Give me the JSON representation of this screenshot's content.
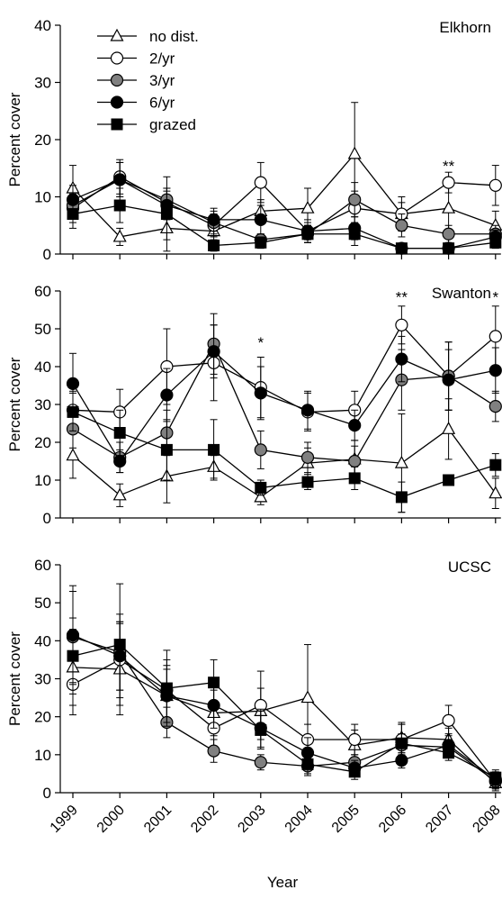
{
  "chart_data": [
    {
      "type": "line",
      "title": "Elkhorn",
      "ylabel": "Percent cover",
      "ylim": [
        0,
        40
      ],
      "yticks": [
        0,
        10,
        20,
        30,
        40
      ],
      "x": [
        "1999",
        "2000",
        "2001",
        "2002",
        "2003",
        "2004",
        "2005",
        "2006",
        "2007",
        "2008"
      ],
      "annotations": [
        {
          "x": "2007",
          "text": "**",
          "y": 14.5
        }
      ],
      "legend": {
        "placement": "top-left"
      },
      "series": [
        {
          "name": "no dist.",
          "marker": "triangle",
          "values": [
            11.5,
            3.0,
            4.5,
            4.0,
            7.5,
            8.0,
            17.5,
            7.0,
            8.0,
            5.0
          ],
          "err": [
            4,
            1.5,
            2,
            2,
            2,
            3.5,
            9,
            3,
            4,
            2.5
          ]
        },
        {
          "name": "2/yr",
          "marker": "circle-open",
          "values": [
            8.0,
            13.5,
            9.0,
            5.0,
            12.5,
            4.0,
            8.0,
            7.0,
            12.5,
            12.0
          ],
          "err": [
            2.5,
            3,
            2.5,
            2,
            3.5,
            2,
            3,
            2,
            1.8,
            3.5
          ]
        },
        {
          "name": "3/yr",
          "marker": "circle-gray",
          "values": [
            8.5,
            13.0,
            9.5,
            5.5,
            2.5,
            3.5,
            9.5,
            5.0,
            3.5,
            3.5
          ],
          "err": [
            2,
            3,
            2,
            2,
            1,
            1.5,
            3,
            2,
            1.5,
            1.5
          ]
        },
        {
          "name": "6/yr",
          "marker": "circle-black",
          "values": [
            9.5,
            13.0,
            8.5,
            6.0,
            6.0,
            4.0,
            4.5,
            1.0,
            1.0,
            3.0
          ],
          "err": [
            2.5,
            3,
            2.5,
            2,
            2.5,
            1.5,
            2,
            0.8,
            0.8,
            1.2
          ]
        },
        {
          "name": "grazed",
          "marker": "square",
          "values": [
            7.0,
            8.5,
            7.0,
            1.5,
            2.0,
            3.5,
            3.5,
            1.0,
            1.0,
            2.0
          ],
          "err": [
            2.5,
            3,
            6.5,
            1,
            1,
            1.5,
            2,
            0.8,
            0.8,
            1
          ]
        }
      ]
    },
    {
      "type": "line",
      "title": "Swanton",
      "ylabel": "Percent cover",
      "ylim": [
        0,
        60
      ],
      "yticks": [
        0,
        10,
        20,
        30,
        40,
        50,
        60
      ],
      "x": [
        "1999",
        "2000",
        "2001",
        "2002",
        "2003",
        "2004",
        "2005",
        "2006",
        "2007",
        "2008"
      ],
      "annotations": [
        {
          "x": "2003",
          "text": "*",
          "y": 45
        },
        {
          "x": "2006",
          "text": "**",
          "y": 57
        },
        {
          "x": "2008",
          "text": "*",
          "y": 57
        }
      ],
      "series": [
        {
          "name": "no dist.",
          "marker": "triangle",
          "values": [
            16.5,
            6.0,
            11.0,
            13.5,
            5.5,
            14.5,
            15.5,
            14.5,
            23.5,
            6.5
          ],
          "err": [
            6,
            3,
            7,
            3,
            2,
            4,
            5,
            13,
            8,
            4
          ]
        },
        {
          "name": "2/yr",
          "marker": "circle-open",
          "values": [
            28.5,
            28.0,
            40.0,
            41.0,
            34.5,
            28.0,
            28.5,
            51.0,
            37.5,
            48.0
          ],
          "err": [
            5,
            6,
            10,
            10,
            8,
            5,
            5,
            5,
            9,
            8
          ]
        },
        {
          "name": "3/yr",
          "marker": "circle-gray",
          "values": [
            23.5,
            16.0,
            22.5,
            46.0,
            18.0,
            16.0,
            15.0,
            36.5,
            37.5,
            29.5
          ],
          "err": [
            5,
            4,
            6,
            8,
            5,
            4,
            4,
            8,
            9,
            4
          ]
        },
        {
          "name": "6/yr",
          "marker": "circle-black",
          "values": [
            35.5,
            15.0,
            32.5,
            44.0,
            33.0,
            28.5,
            24.5,
            42.0,
            36.5,
            39.0
          ],
          "err": [
            8,
            3,
            7,
            7,
            7,
            5,
            4,
            6,
            8,
            6
          ]
        },
        {
          "name": "grazed",
          "marker": "square",
          "values": [
            28.0,
            22.5,
            18.0,
            18.0,
            8.0,
            9.5,
            10.5,
            5.5,
            10.0,
            14.0
          ],
          "err": [
            5,
            6,
            8,
            8,
            2,
            2,
            3,
            4,
            1,
            3
          ]
        }
      ]
    },
    {
      "type": "line",
      "title": "UCSC",
      "ylabel": "Percent cover",
      "xlabel": "Year",
      "ylim": [
        0,
        60
      ],
      "yticks": [
        0,
        10,
        20,
        30,
        40,
        50,
        60
      ],
      "x": [
        "1999",
        "2000",
        "2001",
        "2002",
        "2003",
        "2004",
        "2005",
        "2006",
        "2007",
        "2008"
      ],
      "series": [
        {
          "name": "no dist.",
          "marker": "triangle",
          "values": [
            33.0,
            32.5,
            25.5,
            21.0,
            21.5,
            25.0,
            12.5,
            14.5,
            14.0,
            2.5
          ],
          "err": [
            10,
            12,
            8,
            6,
            6,
            14,
            4,
            4,
            3,
            2
          ]
        },
        {
          "name": "2/yr",
          "marker": "circle-open",
          "values": [
            28.5,
            35.0,
            27.0,
            17.0,
            23.0,
            14.0,
            14.0,
            14.0,
            19.0,
            3.0
          ],
          "err": [
            8,
            10,
            8,
            5,
            9,
            4,
            4,
            4,
            4,
            2
          ]
        },
        {
          "name": "3/yr",
          "marker": "circle-gray",
          "values": [
            41.0,
            37.0,
            18.5,
            11.0,
            8.0,
            7.0,
            8.0,
            12.5,
            12.0,
            3.0
          ],
          "err": [
            12,
            10,
            4,
            3,
            2,
            2,
            2,
            3,
            2,
            2
          ]
        },
        {
          "name": "6/yr",
          "marker": "circle-black",
          "values": [
            41.5,
            36.0,
            25.5,
            23.0,
            17.0,
            10.5,
            6.5,
            8.5,
            12.5,
            3.5
          ],
          "err": [
            13,
            9,
            7,
            6,
            5,
            4,
            2,
            2,
            3,
            2
          ]
        },
        {
          "name": "grazed",
          "marker": "square",
          "values": [
            36.0,
            39.0,
            27.5,
            29.0,
            16.5,
            7.5,
            5.5,
            13.0,
            10.5,
            4.0
          ],
          "err": [
            10,
            16,
            10,
            6,
            5,
            3,
            2,
            5,
            2,
            2
          ]
        }
      ]
    }
  ]
}
